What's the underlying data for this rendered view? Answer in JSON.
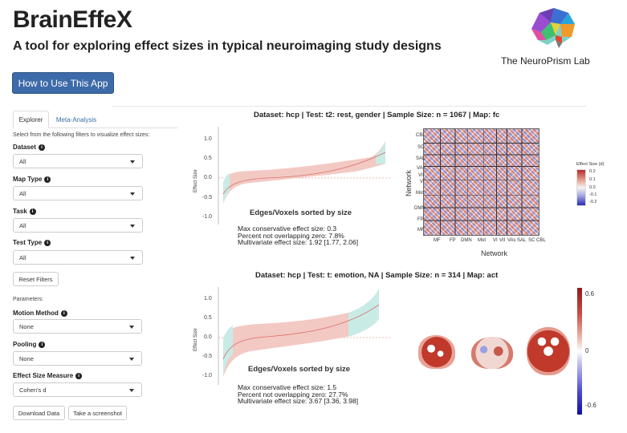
{
  "header": {
    "title": "BrainEffeX",
    "subtitle": "A tool for exploring effect sizes in typical neuroimaging study designs",
    "lab_name": "The NeuroPrism Lab",
    "howto_label": "How to Use This App"
  },
  "sidebar": {
    "tabs": [
      {
        "label": "Explorer",
        "active": true
      },
      {
        "label": "Meta-Analysis",
        "active": false
      }
    ],
    "instructions": "Select from the following filters to visualize effect sizes:",
    "filters": [
      {
        "label": "Dataset",
        "value": "All"
      },
      {
        "label": "Map Type",
        "value": "All"
      },
      {
        "label": "Task",
        "value": "All"
      },
      {
        "label": "Test Type",
        "value": "All"
      }
    ],
    "reset_label": "Reset Filters",
    "parameters_label": "Parameters:",
    "params": [
      {
        "label": "Motion Method",
        "value": "None"
      },
      {
        "label": "Pooling",
        "value": "None"
      },
      {
        "label": "Effect Size Measure",
        "value": "Cohen's d"
      }
    ],
    "download_label": "Download Data",
    "screenshot_label": "Take a screenshot"
  },
  "panels": [
    {
      "title": "Dataset: hcp   |  Test: t2: rest, gender   |  Sample Size: n = 1067   |  Map: fc",
      "ylabel": "Effect Size",
      "xlabel": "Edges/Voxels sorted by size",
      "yticks": [
        "1.0",
        "0.5",
        "0.0",
        "-0.5",
        "-1.0"
      ],
      "stats": [
        "Max conservative effect size: 0.3",
        "Percent not overlapping zero: 7.8%",
        "Multivariate effect size: 1.92 [1.77, 2.06]"
      ]
    },
    {
      "title": "Dataset: hcp   |  Test: t: emotion, NA   |  Sample Size: n = 314   |  Map: act",
      "ylabel": "Effect Size",
      "xlabel": "Edges/Voxels sorted by size",
      "yticks": [
        "1.0",
        "0.5",
        "0.0",
        "-0.5",
        "-1.0"
      ],
      "stats": [
        "Max conservative effect size: 1.5",
        "Percent not overlapping zero: 27.7%",
        "Multivariate effect size: 3.67 [3.36, 3.98]"
      ]
    }
  ],
  "matrix": {
    "y_networks": [
      "CBL",
      "SC",
      "SAL",
      "VAs",
      "VII",
      "VI",
      "Mot",
      "DMN",
      "FP",
      "MF"
    ],
    "x_networks": [
      "MF",
      "FP",
      "DMN",
      "Mot",
      "VI",
      "VII",
      "VAs",
      "SAL",
      "SC",
      "CBL"
    ],
    "x_title": "Network",
    "y_title": "Network",
    "legend_title": "Effect Size (d)",
    "legend_ticks": [
      "0.2",
      "0.1",
      "0.0",
      "-0.1",
      "-0.2"
    ]
  },
  "colorbar": {
    "ticks": [
      "0.6",
      "0",
      "-0.6"
    ]
  },
  "colors": {
    "accent": "#3d6aa8",
    "band_red": "#f3c9c4",
    "band_teal": "#c8ebe6",
    "line_red": "#d9706a"
  }
}
